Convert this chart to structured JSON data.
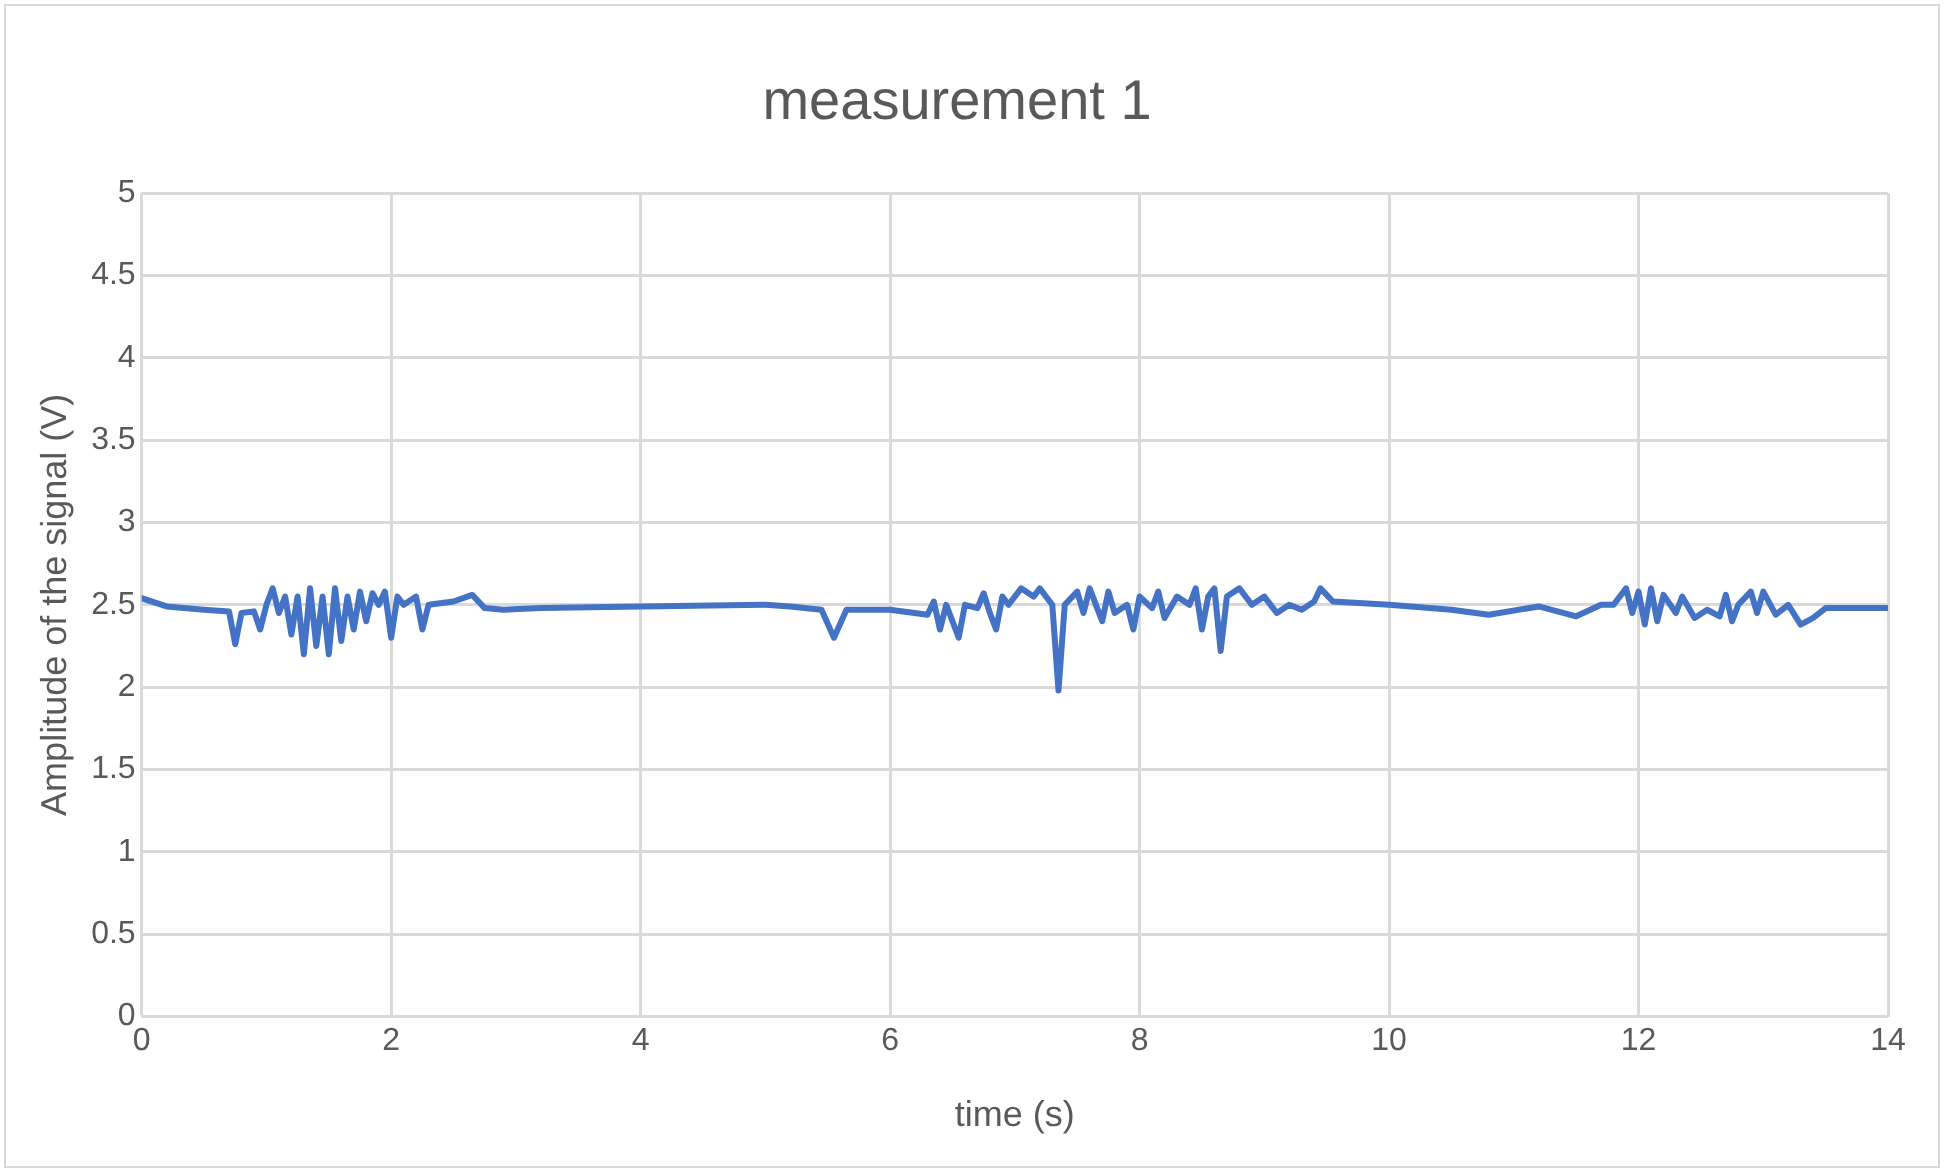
{
  "chart_data": {
    "type": "line",
    "title": "measurement 1",
    "xlabel": "time (s)",
    "ylabel": "Amplitude of the signal (V)",
    "x": [
      0,
      0.2,
      0.5,
      0.7,
      0.75,
      0.8,
      0.9,
      0.95,
      1.0,
      1.05,
      1.1,
      1.15,
      1.2,
      1.25,
      1.3,
      1.35,
      1.4,
      1.45,
      1.5,
      1.55,
      1.6,
      1.65,
      1.7,
      1.75,
      1.8,
      1.85,
      1.9,
      1.95,
      2.0,
      2.05,
      2.1,
      2.2,
      2.25,
      2.3,
      2.5,
      2.65,
      2.75,
      2.9,
      3.2,
      4,
      5,
      5.2,
      5.45,
      5.55,
      5.65,
      6,
      6.3,
      6.35,
      6.4,
      6.45,
      6.55,
      6.6,
      6.7,
      6.75,
      6.8,
      6.85,
      6.9,
      6.95,
      7.05,
      7.15,
      7.2,
      7.3,
      7.35,
      7.4,
      7.5,
      7.55,
      7.6,
      7.7,
      7.75,
      7.8,
      7.9,
      7.95,
      8.0,
      8.1,
      8.15,
      8.2,
      8.3,
      8.4,
      8.45,
      8.5,
      8.55,
      8.6,
      8.65,
      8.7,
      8.8,
      8.9,
      9.0,
      9.1,
      9.2,
      9.3,
      9.4,
      9.45,
      9.55,
      10,
      10.5,
      10.8,
      11.2,
      11.5,
      11.7,
      11.8,
      11.9,
      11.95,
      12.0,
      12.05,
      12.1,
      12.15,
      12.2,
      12.3,
      12.35,
      12.45,
      12.55,
      12.65,
      12.7,
      12.75,
      12.8,
      12.9,
      12.95,
      13.0,
      13.1,
      13.2,
      13.3,
      13.4,
      13.5,
      14
    ],
    "series": [
      {
        "color": "#4472c4",
        "values": [
          2.54,
          2.49,
          2.47,
          2.46,
          2.26,
          2.45,
          2.46,
          2.35,
          2.5,
          2.6,
          2.45,
          2.55,
          2.32,
          2.55,
          2.2,
          2.6,
          2.25,
          2.55,
          2.2,
          2.6,
          2.28,
          2.55,
          2.35,
          2.58,
          2.4,
          2.57,
          2.5,
          2.58,
          2.3,
          2.55,
          2.5,
          2.55,
          2.35,
          2.5,
          2.52,
          2.56,
          2.48,
          2.47,
          2.48,
          2.49,
          2.5,
          2.49,
          2.47,
          2.3,
          2.47,
          2.47,
          2.44,
          2.52,
          2.35,
          2.5,
          2.3,
          2.5,
          2.48,
          2.57,
          2.45,
          2.35,
          2.55,
          2.5,
          2.6,
          2.55,
          2.6,
          2.5,
          1.98,
          2.5,
          2.58,
          2.45,
          2.6,
          2.4,
          2.58,
          2.45,
          2.5,
          2.35,
          2.55,
          2.48,
          2.58,
          2.42,
          2.55,
          2.5,
          2.6,
          2.35,
          2.55,
          2.6,
          2.22,
          2.55,
          2.6,
          2.5,
          2.55,
          2.45,
          2.5,
          2.47,
          2.52,
          2.6,
          2.52,
          2.5,
          2.47,
          2.44,
          2.49,
          2.43,
          2.5,
          2.5,
          2.6,
          2.45,
          2.58,
          2.38,
          2.6,
          2.4,
          2.56,
          2.45,
          2.55,
          2.42,
          2.47,
          2.43,
          2.56,
          2.4,
          2.5,
          2.58,
          2.45,
          2.58,
          2.44,
          2.5,
          2.38,
          2.42,
          2.48,
          2.48
        ]
      }
    ],
    "xlim": [
      0,
      14
    ],
    "xticks": [
      0,
      2,
      4,
      6,
      8,
      10,
      12,
      14
    ],
    "ylim": [
      0,
      5
    ],
    "yticks": [
      0,
      0.5,
      1,
      1.5,
      2,
      2.5,
      3,
      3.5,
      4,
      4.5,
      5
    ],
    "grid": true,
    "legend": false,
    "marker": "none",
    "line_style": "solid"
  }
}
